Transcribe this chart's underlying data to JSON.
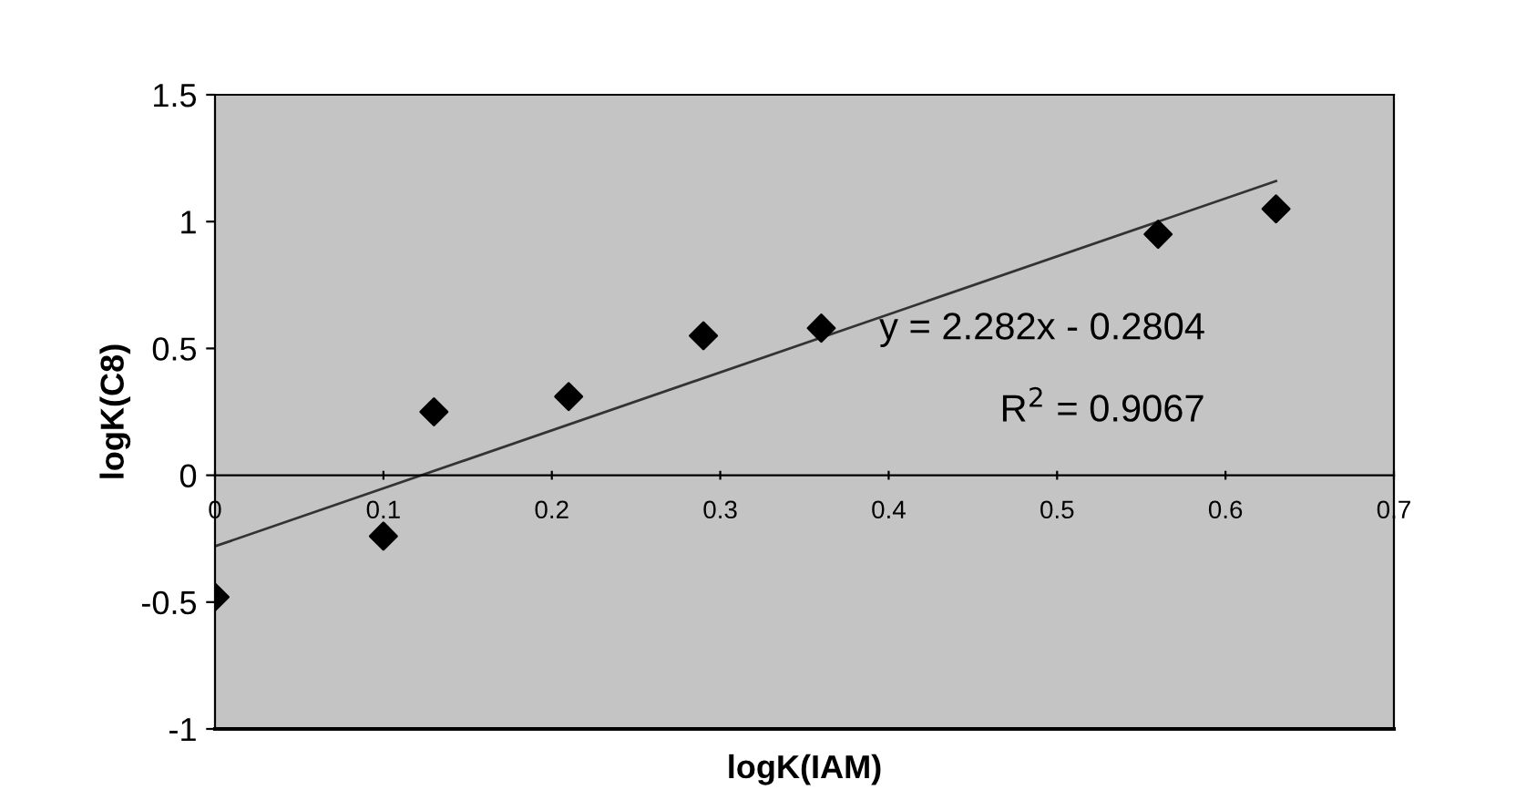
{
  "chart_data": {
    "type": "scatter",
    "xlabel": "logK(IAM)",
    "ylabel": "logK(C8)",
    "xlim": [
      0,
      0.7
    ],
    "ylim": [
      -1,
      1.5
    ],
    "xticks": [
      0,
      0.1,
      0.2,
      0.3,
      0.4,
      0.5,
      0.6,
      0.7
    ],
    "yticks": [
      -1,
      -0.5,
      0,
      0.5,
      1,
      1.5
    ],
    "grid": false,
    "marker": "diamond",
    "series": [
      {
        "color": "#000000",
        "x": [
          0,
          0.1,
          0.13,
          0.21,
          0.29,
          0.36,
          0.56,
          0.63
        ],
        "values": [
          -0.48,
          -0.24,
          0.25,
          0.31,
          0.55,
          0.58,
          0.95,
          1.05
        ]
      },
      {
        "type": "line",
        "color": "#333333",
        "marker": "none",
        "line_style": "solid",
        "x": [
          0,
          0.63
        ],
        "values": [
          -0.28,
          1.16
        ]
      }
    ],
    "annotations": [
      "y = 2.282x - 0.2804",
      "R$^{2}$ = 0.9067"
    ]
  }
}
